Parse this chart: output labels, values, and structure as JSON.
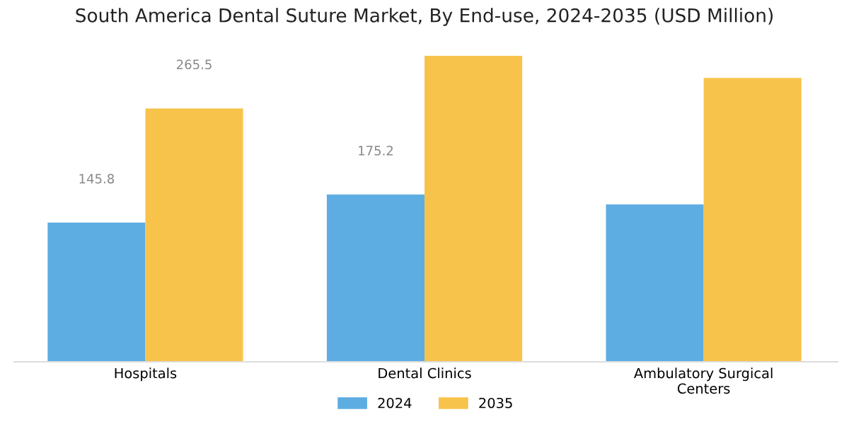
{
  "chart_data": {
    "type": "bar",
    "title": "South America Dental Suture Market, By End-use, 2024-2035 (USD Million)",
    "categories": [
      "Hospitals",
      "Dental Clinics",
      "Ambulatory Surgical\nCenters"
    ],
    "series": [
      {
        "name": "2024",
        "color": "#5dade2",
        "values": [
          145.8,
          175.2,
          165
        ],
        "value_labels": [
          "145.8",
          "175.2",
          null
        ]
      },
      {
        "name": "2035",
        "color": "#f7c34b",
        "values": [
          265.5,
          320.6,
          297.5
        ],
        "value_labels": [
          "265.5",
          null,
          null
        ]
      }
    ],
    "legend": "bottom",
    "grid": false
  }
}
